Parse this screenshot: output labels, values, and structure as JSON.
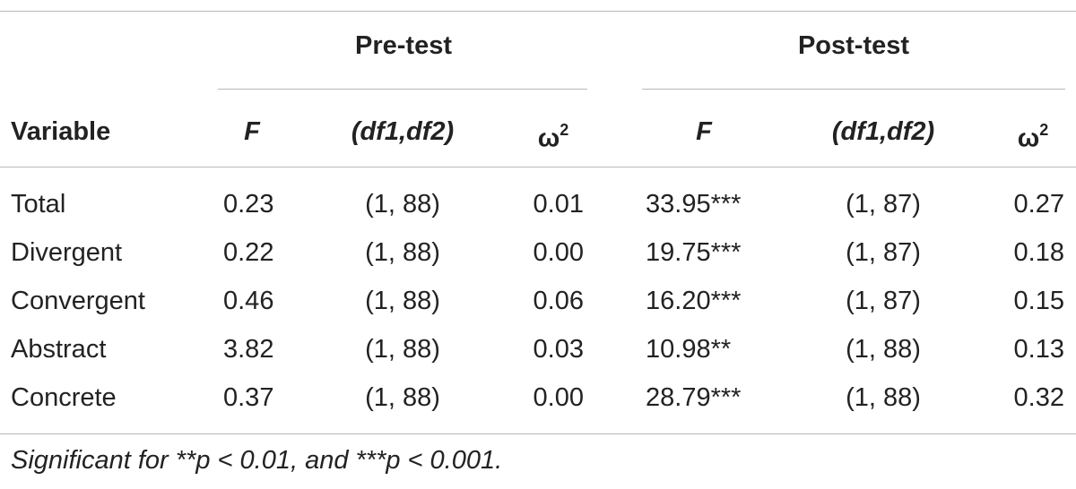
{
  "table": {
    "group_headers": [
      "Pre-test",
      "Post-test"
    ],
    "columns": {
      "variable": "Variable",
      "f": "F",
      "df": "(df1,df2)",
      "omega_symbol": "ω",
      "omega_exp": "2"
    },
    "rows": [
      {
        "variable": "Total",
        "pre_f": "0.23",
        "pre_df": "(1, 88)",
        "pre_omega": "0.01",
        "post_f": "33.95***",
        "post_df": "(1, 87)",
        "post_omega": "0.27"
      },
      {
        "variable": "Divergent",
        "pre_f": "0.22",
        "pre_df": "(1, 88)",
        "pre_omega": "0.00",
        "post_f": "19.75***",
        "post_df": "(1, 87)",
        "post_omega": "0.18"
      },
      {
        "variable": "Convergent",
        "pre_f": "0.46",
        "pre_df": "(1, 88)",
        "pre_omega": "0.06",
        "post_f": "16.20***",
        "post_df": "(1, 87)",
        "post_omega": "0.15"
      },
      {
        "variable": "Abstract",
        "pre_f": "3.82",
        "pre_df": "(1, 88)",
        "pre_omega": "0.03",
        "post_f": "10.98**",
        "post_df": "(1, 88)",
        "post_omega": "0.13"
      },
      {
        "variable": "Concrete",
        "pre_f": "0.37",
        "pre_df": "(1, 88)",
        "pre_omega": "0.00",
        "post_f": "28.79***",
        "post_df": "(1, 88)",
        "post_omega": "0.32"
      }
    ],
    "footnote": "Significant for **p < 0.01, and ***p < 0.001."
  }
}
